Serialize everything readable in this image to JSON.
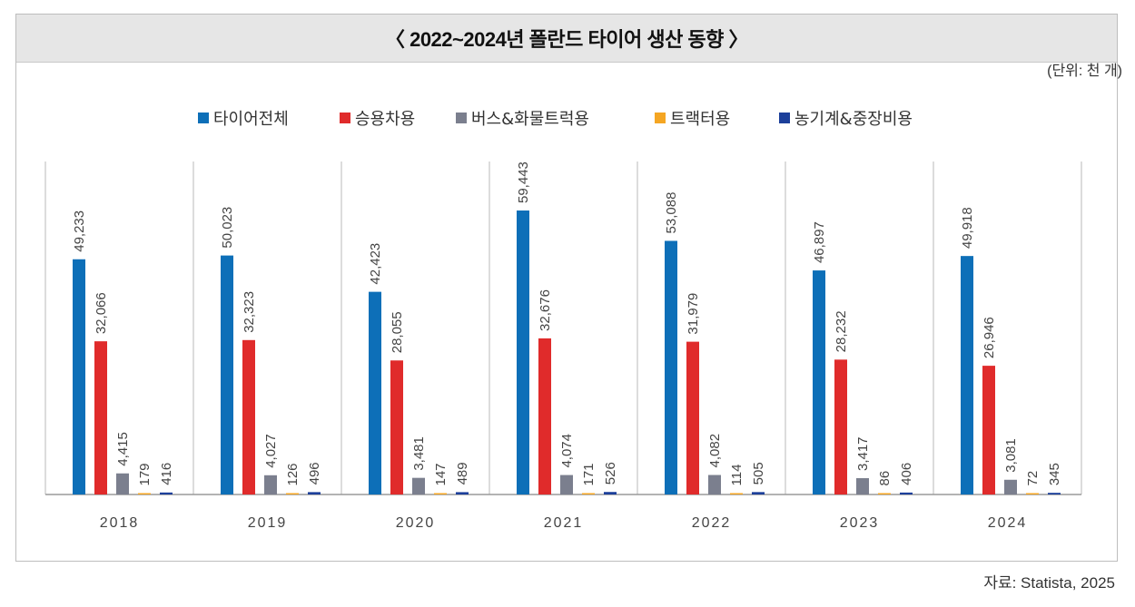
{
  "title": "〈 2022~2024년 폴란드 타이어 생산 동향 〉",
  "unit": "(단위: 천 개)",
  "source": "자료: Statista, 2025",
  "chart_data": {
    "type": "bar",
    "title": "〈 2022~2024년 폴란드 타이어 생산 동향 〉",
    "xlabel": "",
    "ylabel": "",
    "ylim": [
      0,
      60000
    ],
    "grid": false,
    "legend_position": "top-center",
    "categories": [
      "2018",
      "2019",
      "2020",
      "2021",
      "2022",
      "2023",
      "2024"
    ],
    "series": [
      {
        "name": "타이어전체",
        "color": "#0d6fb8",
        "values": [
          49233,
          50023,
          42423,
          59443,
          53088,
          46897,
          49918
        ],
        "labels": [
          "49,233",
          "50,023",
          "42,423",
          "59,443",
          "53,088",
          "46,897",
          "49,918"
        ]
      },
      {
        "name": "승용차용",
        "color": "#e02b2b",
        "values": [
          32066,
          32323,
          28055,
          32676,
          31979,
          28232,
          26946
        ],
        "labels": [
          "32,066",
          "32,323",
          "28,055",
          "32,676",
          "31,979",
          "28,232",
          "26,946"
        ]
      },
      {
        "name": "버스&화물트럭용",
        "color": "#7b7f8e",
        "values": [
          4415,
          4027,
          3481,
          4074,
          4082,
          3417,
          3081
        ],
        "labels": [
          "4,415",
          "4,027",
          "3,481",
          "4,074",
          "4,082",
          "3,417",
          "3,081"
        ]
      },
      {
        "name": "트랙터용",
        "color": "#f5a623",
        "values": [
          179,
          126,
          147,
          171,
          114,
          86,
          72
        ],
        "labels": [
          "179",
          "126",
          "147",
          "171",
          "114",
          "86",
          "72"
        ]
      },
      {
        "name": "농기계&중장비용",
        "color": "#1c3f9a",
        "values": [
          416,
          496,
          489,
          526,
          505,
          406,
          345
        ],
        "labels": [
          "416",
          "496",
          "489",
          "526",
          "505",
          "406",
          "345"
        ]
      }
    ]
  }
}
